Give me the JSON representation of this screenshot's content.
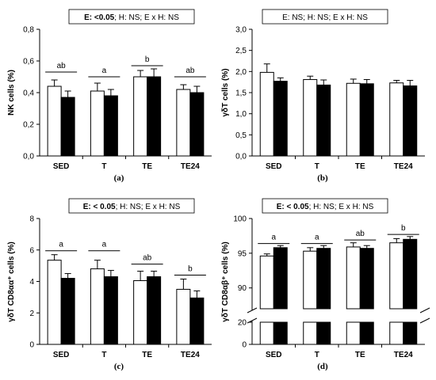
{
  "chart_data": [
    {
      "type": "bar",
      "panel_label": "(a)",
      "ylabel": "NK cells (%)",
      "ylim": [
        0,
        0.8
      ],
      "yticks": [
        "0,0",
        "0,2",
        "0,4",
        "0,6",
        "0,8"
      ],
      "yticks_values": [
        0,
        0.2,
        0.4,
        0.6,
        0.8
      ],
      "stats": {
        "bold": "E: <0.05",
        "rest": "; H: NS; E x H: NS"
      },
      "categories": [
        "SED",
        "T",
        "TE",
        "TE24"
      ],
      "series": [
        {
          "fill": "#ffffff",
          "values": [
            0.44,
            0.41,
            0.5,
            0.42
          ],
          "errors": [
            0.04,
            0.05,
            0.04,
            0.03
          ]
        },
        {
          "fill": "#000000",
          "values": [
            0.37,
            0.38,
            0.5,
            0.4
          ],
          "errors": [
            0.04,
            0.04,
            0.05,
            0.04
          ]
        }
      ],
      "letters": [
        "ab",
        "a",
        "b",
        "ab"
      ],
      "letter_bar_y": [
        0.53,
        0.5,
        0.57,
        0.5
      ],
      "grid": false
    },
    {
      "type": "bar",
      "panel_label": "(b)",
      "ylabel": "γδT cells (%)",
      "ylim": [
        0,
        3.0
      ],
      "yticks": [
        "0,0",
        "0,5",
        "1,0",
        "1,5",
        "2,0",
        "2,5",
        "3,0"
      ],
      "yticks_values": [
        0,
        0.5,
        1.0,
        1.5,
        2.0,
        2.5,
        3.0
      ],
      "stats": {
        "bold": "",
        "rest": "E: NS; H: NS; E x H: NS"
      },
      "categories": [
        "SED",
        "T",
        "TE",
        "TE24"
      ],
      "series": [
        {
          "fill": "#ffffff",
          "values": [
            1.98,
            1.81,
            1.72,
            1.73
          ],
          "errors": [
            0.2,
            0.08,
            0.1,
            0.06
          ]
        },
        {
          "fill": "#000000",
          "values": [
            1.77,
            1.68,
            1.71,
            1.66
          ],
          "errors": [
            0.08,
            0.12,
            0.1,
            0.13
          ]
        }
      ],
      "letters": [
        "",
        "",
        "",
        ""
      ],
      "letter_bar_y": [
        0,
        0,
        0,
        0
      ],
      "grid": false
    },
    {
      "type": "bar",
      "panel_label": "(c)",
      "ylabel": "γδT CD8αα⁺ cells (%)",
      "ylim": [
        0,
        8
      ],
      "yticks": [
        "0",
        "2",
        "4",
        "6",
        "8"
      ],
      "yticks_values": [
        0,
        2,
        4,
        6,
        8
      ],
      "stats": {
        "bold": "E: < 0.05",
        "rest": "; H: NS; E x H: NS"
      },
      "categories": [
        "SED",
        "T",
        "TE",
        "TE24"
      ],
      "series": [
        {
          "fill": "#ffffff",
          "values": [
            5.35,
            4.8,
            4.05,
            3.5
          ],
          "errors": [
            0.35,
            0.55,
            0.6,
            0.65
          ]
        },
        {
          "fill": "#000000",
          "values": [
            4.2,
            4.3,
            4.3,
            2.95
          ],
          "errors": [
            0.3,
            0.4,
            0.35,
            0.45
          ]
        }
      ],
      "letters": [
        "a",
        "a",
        "ab",
        "b"
      ],
      "letter_bar_y": [
        5.95,
        5.95,
        5.1,
        4.4
      ],
      "grid": false
    },
    {
      "type": "bar",
      "panel_label": "(d)",
      "ylabel": "γδT CD8αβ⁺ cells (%)",
      "ylim_upper": [
        87,
        100
      ],
      "ylim_lower": [
        0,
        20
      ],
      "yticks": [
        "0",
        "20",
        "90",
        "95",
        "100"
      ],
      "stats": {
        "bold": "E: < 0.05",
        "rest": "; H: NS; E x H: NS"
      },
      "categories": [
        "SED",
        "T",
        "TE",
        "TE24"
      ],
      "series": [
        {
          "fill": "#ffffff",
          "values": [
            94.6,
            95.3,
            95.9,
            96.5
          ],
          "errors": [
            0.3,
            0.5,
            0.6,
            0.6
          ]
        },
        {
          "fill": "#000000",
          "values": [
            95.8,
            95.7,
            95.7,
            97.0
          ],
          "errors": [
            0.3,
            0.4,
            0.4,
            0.4
          ]
        }
      ],
      "letters": [
        "a",
        "a",
        "ab",
        "b"
      ],
      "letter_bar_y": [
        96.4,
        96.4,
        96.9,
        97.7
      ],
      "axis_break": true,
      "grid": false
    }
  ]
}
